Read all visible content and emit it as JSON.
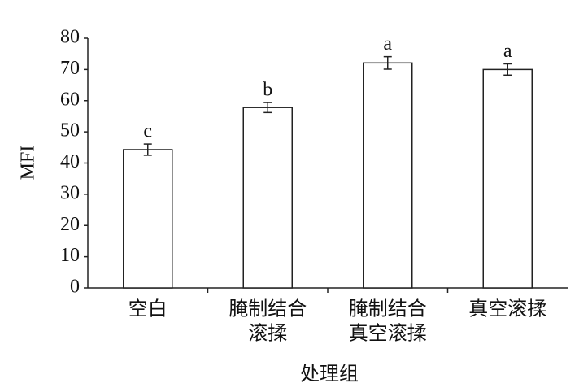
{
  "chart_data": {
    "type": "bar",
    "x_label": "处理组",
    "y_label": "MFI",
    "categories": [
      [
        "空白"
      ],
      [
        "腌制结合",
        "滚揉"
      ],
      [
        "腌制结合",
        "真空滚揉"
      ],
      [
        "真空滚揉"
      ]
    ],
    "values": [
      44.3,
      57.8,
      72.1,
      70.0
    ],
    "errors": [
      1.8,
      1.6,
      2.0,
      1.8
    ],
    "annotations": [
      "c",
      "b",
      "a",
      "a"
    ],
    "color": "#ffffff",
    "ylim": [
      0,
      80
    ],
    "yticks": [
      0,
      10,
      20,
      30,
      40,
      50,
      60,
      70,
      80
    ],
    "grid": false
  }
}
